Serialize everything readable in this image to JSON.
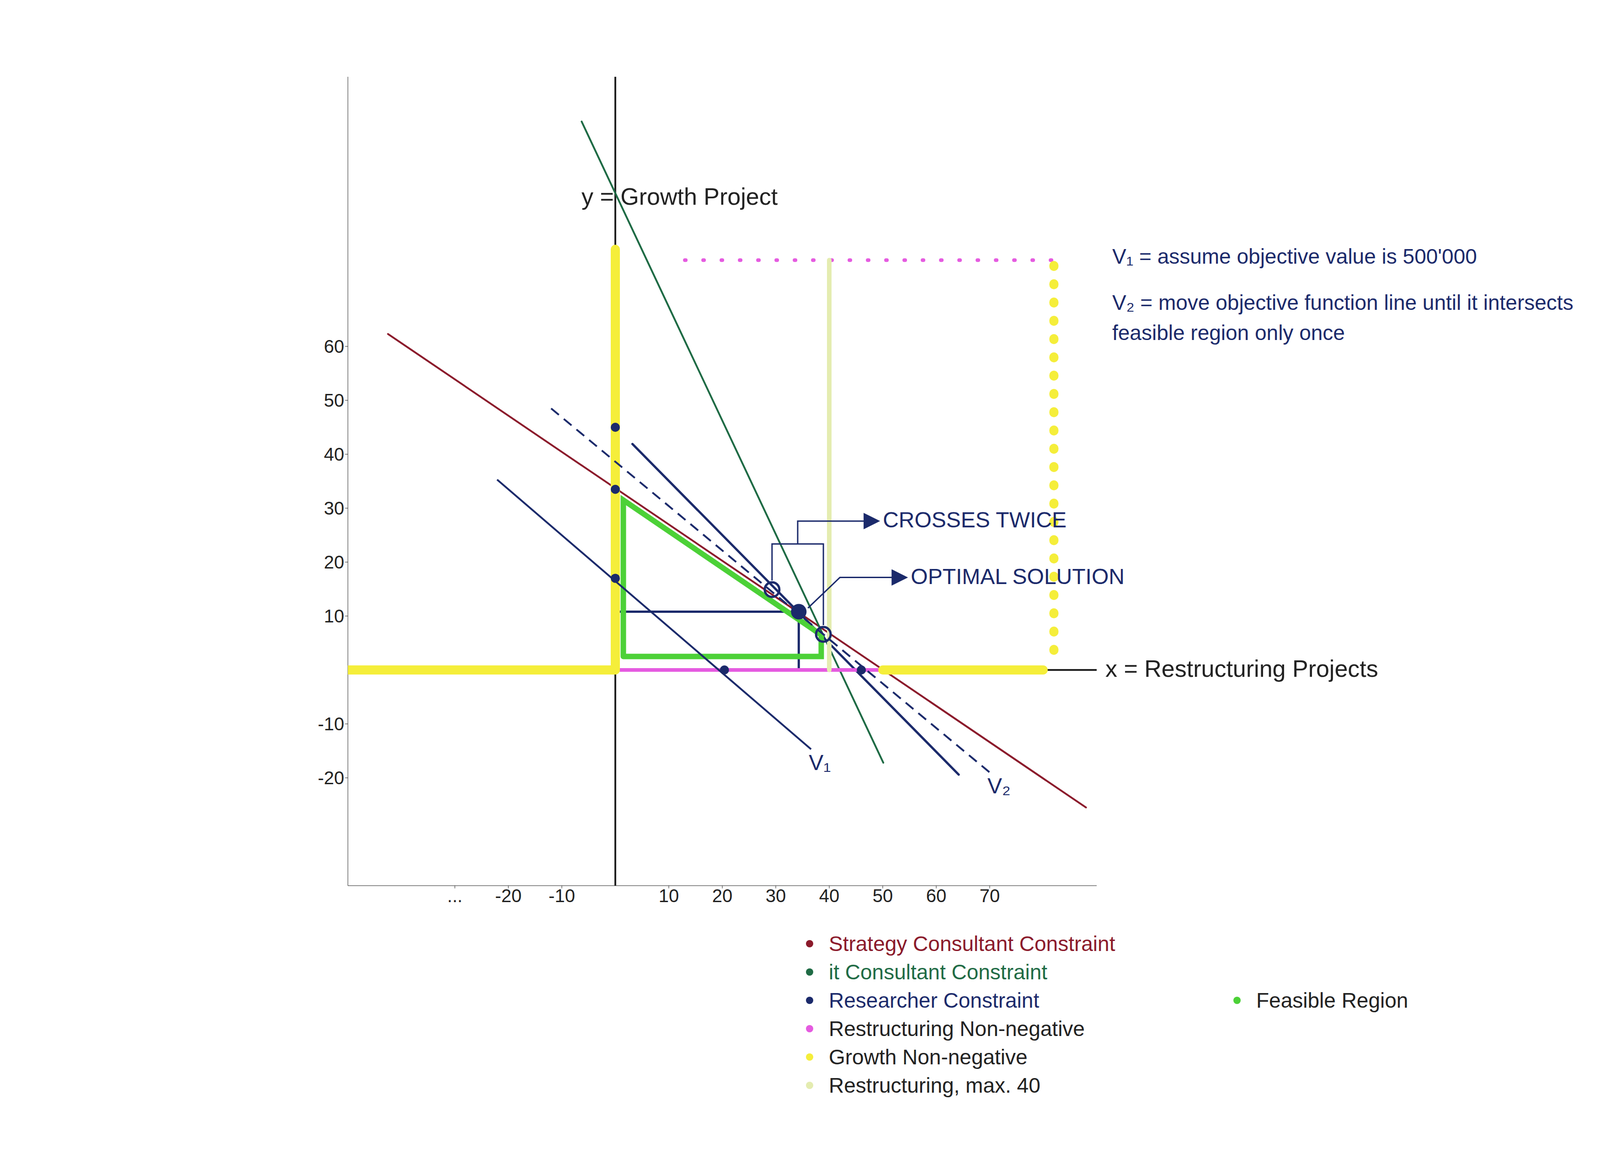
{
  "chart_data": {
    "type": "line",
    "x_label": "x = Restructuring Projects",
    "y_label": "y = Growth Project",
    "xlim": [
      -50,
      90
    ],
    "ylim": [
      -40,
      110
    ],
    "xticks": [
      {
        "value": -30,
        "label": "..."
      },
      -20,
      -10,
      10,
      20,
      30,
      40,
      50,
      60,
      70
    ],
    "yticks": [
      -20,
      -10,
      10,
      20,
      30,
      40,
      50,
      60
    ],
    "grid": false,
    "series": [
      {
        "name": "Strategy Consultant Constraint",
        "color": "#8b1a2b",
        "segments": [
          {
            "line_style": "solid",
            "x": [
              -42.5,
              88
            ],
            "values": [
              62.3,
              -25.5
            ]
          }
        ]
      },
      {
        "name": "it Consultant Constraint",
        "color": "#1f6b45",
        "segments": [
          {
            "line_style": "solid",
            "x": [
              -6.3,
              50.1
            ],
            "values": [
              101.7,
              -17.2
            ]
          }
        ]
      },
      {
        "name": "Researcher Constraint",
        "color": "#1b2a6b",
        "segments": [
          {
            "line_style": "solid",
            "x": [
              3.2,
              64.2
            ],
            "values": [
              41.9,
              -19.4
            ]
          }
        ]
      },
      {
        "name": "Restructuring Non-negative",
        "color": "#e55be0",
        "segments": [
          {
            "line_style": "solid",
            "x": [
              0,
              80
            ],
            "values": [
              0,
              0
            ]
          },
          {
            "line_style": "dotted",
            "x": [
              13,
              82
            ],
            "values": [
              76,
              76
            ]
          }
        ]
      },
      {
        "name": "Growth Non-negative",
        "color": "#f5ee3a",
        "segments": [
          {
            "line_style": "solid",
            "x": [
              -50,
              0
            ],
            "values": [
              0,
              0
            ]
          },
          {
            "line_style": "solid",
            "x": [
              50,
              80
            ],
            "values": [
              0,
              0
            ]
          },
          {
            "line_style": "solid",
            "x": [
              0,
              0
            ],
            "values": [
              0,
              78
            ]
          },
          {
            "line_style": "dotted",
            "x": [
              82,
              82
            ],
            "values": [
              75,
              2
            ]
          }
        ]
      },
      {
        "name": "Restructuring, max. 40",
        "color": "#e4ecb0",
        "segments": [
          {
            "line_style": "solid",
            "x": [
              40,
              40
            ],
            "values": [
              0,
              76
            ]
          }
        ]
      },
      {
        "name": "Feasible Region",
        "color": "#4cd137",
        "segments": [
          {
            "line_style": "solid",
            "x": [
              1.5,
              38.5,
              38.5,
              1.5,
              1.5
            ],
            "values": [
              2.5,
              2.5,
              6.5,
              31.5,
              2.5
            ]
          }
        ]
      }
    ],
    "objective_lines": [
      {
        "label": "V₁",
        "color": "#1b2a6b",
        "line_style": "solid",
        "x": [
          -22.1,
          36.6
        ],
        "values": [
          35.3,
          -14.7
        ]
      },
      {
        "label": "V₂",
        "color": "#1b2a6b",
        "line_style": "dashed",
        "x": [
          -12,
          70
        ],
        "values": [
          48.5,
          -19
        ]
      }
    ],
    "marked_points": {
      "x": [
        0,
        0,
        0,
        20.4,
        46
      ],
      "values": [
        45,
        33.5,
        17,
        0,
        0
      ]
    },
    "crossings": {
      "label": "CROSSES TWICE",
      "x": [
        29.3,
        38.9
      ],
      "values": [
        14.9,
        6.6
      ]
    },
    "optimal_solution": {
      "label": "OPTIMAL SOLUTION",
      "x": 34.3,
      "y": 10.8
    },
    "notes": [
      "V₁ = assume objective value is 500'000",
      "V₂ = move objective function line until it intersects feasible region only once"
    ]
  }
}
